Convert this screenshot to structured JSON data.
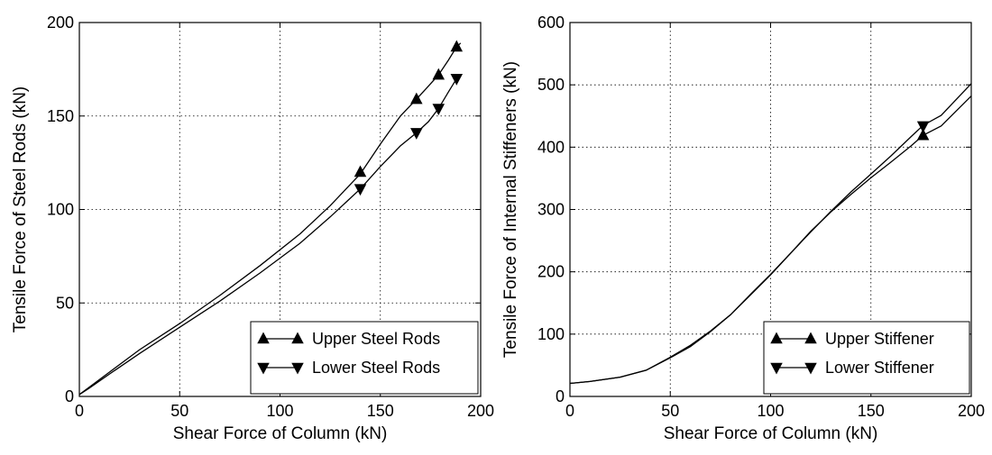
{
  "chart_data": [
    {
      "type": "line",
      "xlabel": "Shear Force of Column (kN)",
      "ylabel": "Tensile Force of Steel Rods (kN)",
      "xlim": [
        0,
        200
      ],
      "ylim": [
        0,
        200
      ],
      "xticks": [
        0,
        50,
        100,
        150,
        200
      ],
      "yticks": [
        0,
        50,
        100,
        150,
        200
      ],
      "grid": true,
      "legend_position": "lower-right",
      "series": [
        {
          "name": "Upper Steel Rods",
          "marker": "triangle-up",
          "x": [
            0,
            5,
            15,
            30,
            50,
            70,
            90,
            110,
            125,
            140,
            150,
            160,
            168,
            174,
            179,
            184,
            188,
            190
          ],
          "y": [
            1,
            5,
            13,
            25,
            39,
            54,
            70,
            87,
            102,
            119,
            135,
            150,
            159,
            166,
            172,
            180,
            187,
            189
          ],
          "marker_points": [
            [
              140,
              120
            ],
            [
              168,
              159
            ],
            [
              179,
              172
            ],
            [
              188,
              187
            ]
          ]
        },
        {
          "name": "Lower Steel Rods",
          "marker": "triangle-down",
          "x": [
            0,
            5,
            15,
            30,
            50,
            70,
            90,
            110,
            125,
            140,
            150,
            160,
            168,
            174,
            179,
            184,
            188
          ],
          "y": [
            1,
            4.5,
            12,
            23,
            37,
            51,
            66,
            82,
            96,
            111,
            123,
            134,
            141,
            147,
            154,
            163,
            170
          ],
          "marker_points": [
            [
              140,
              111
            ],
            [
              168,
              141
            ],
            [
              179,
              154
            ],
            [
              188,
              170
            ]
          ]
        }
      ]
    },
    {
      "type": "line",
      "xlabel": "Shear Force of Column (kN)",
      "ylabel": "Tensile Force of Internal Stiffeners (kN)",
      "xlim": [
        0,
        200
      ],
      "ylim": [
        0,
        600
      ],
      "xticks": [
        0,
        50,
        100,
        150,
        200
      ],
      "yticks": [
        0,
        100,
        200,
        300,
        400,
        500,
        600
      ],
      "grid": true,
      "legend_position": "lower-right",
      "series": [
        {
          "name": "Upper Stiffener",
          "marker": "triangle-up",
          "x": [
            0,
            10,
            25,
            38,
            50,
            60,
            70,
            80,
            90,
            100,
            110,
            120,
            130,
            140,
            150,
            160,
            170,
            176,
            185,
            200
          ],
          "y": [
            21,
            24,
            31,
            42,
            63,
            82,
            105,
            131,
            163,
            195,
            230,
            265,
            296,
            324,
            351,
            376,
            402,
            419,
            434,
            482
          ],
          "marker_points": [
            [
              176,
              419
            ]
          ]
        },
        {
          "name": "Lower Stiffener",
          "marker": "triangle-down",
          "x": [
            0,
            10,
            25,
            38,
            50,
            60,
            70,
            80,
            90,
            100,
            110,
            120,
            130,
            140,
            150,
            160,
            170,
            176,
            185,
            200
          ],
          "y": [
            21,
            24,
            31,
            42,
            62,
            80,
            104,
            131,
            164,
            196,
            230,
            264,
            297,
            328,
            357,
            386,
            417,
            435,
            451,
            502
          ],
          "marker_points": [
            [
              176,
              434
            ]
          ]
        }
      ]
    }
  ]
}
